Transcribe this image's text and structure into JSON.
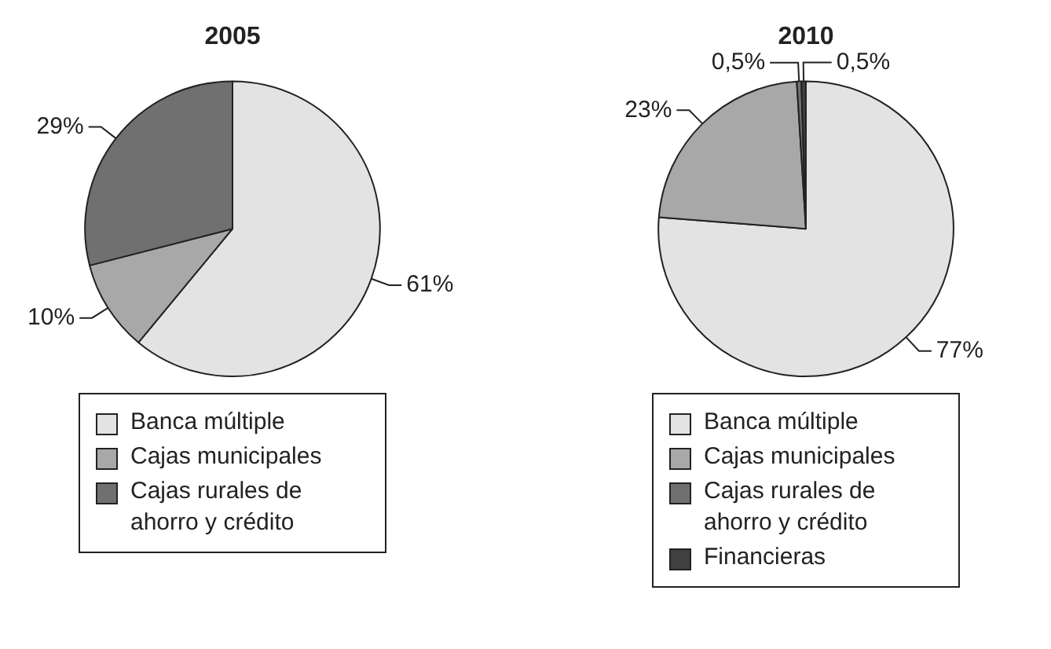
{
  "chart_data": [
    {
      "type": "pie",
      "title": "2005",
      "categories": [
        "Banca múltiple",
        "Cajas municipales",
        "Cajas rurales de ahorro y crédito"
      ],
      "values": [
        61,
        10,
        29
      ],
      "colors": [
        "#e3e3e3",
        "#a8a8a8",
        "#707070"
      ],
      "value_labels": [
        "61%",
        "10%",
        "29%"
      ],
      "legend": "bottom"
    },
    {
      "type": "pie",
      "title": "2010",
      "categories": [
        "Banca múltiple",
        "Cajas municipales",
        "Cajas rurales de ahorro y crédito",
        "Financieras"
      ],
      "values": [
        77,
        23,
        0.5,
        0.5
      ],
      "colors": [
        "#e3e3e3",
        "#a8a8a8",
        "#707070",
        "#404040"
      ],
      "value_labels": [
        "77%",
        "23%",
        "0,5%",
        "0,5%"
      ],
      "legend": "bottom"
    }
  ]
}
